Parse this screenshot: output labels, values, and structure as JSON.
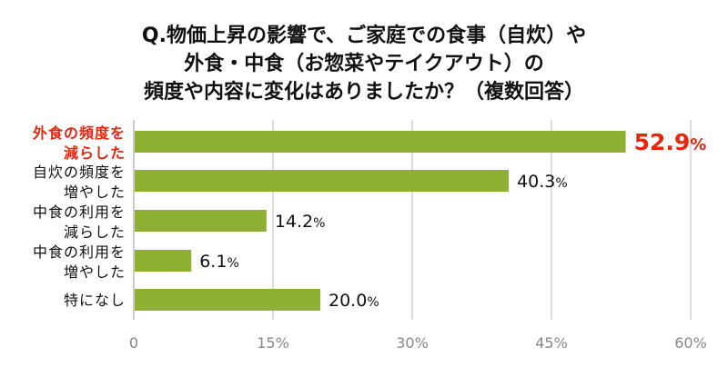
{
  "chart_data": {
    "type": "bar",
    "orientation": "horizontal",
    "title_lines": [
      "Q.物価上昇の影響で、ご家庭での食事（自炊）や",
      "外食・中食（お惣菜やテイクアウト）の",
      "頻度や内容に変化はありましたか？（複数回答）"
    ],
    "categories": [
      [
        "外食の頻度を",
        "減らした"
      ],
      [
        "自炊の頻度を",
        "増やした"
      ],
      [
        "中食の利用を",
        "減らした"
      ],
      [
        "中食の利用を",
        "増やした"
      ],
      [
        "特になし"
      ]
    ],
    "values": [
      52.9,
      40.3,
      14.2,
      6.1,
      20.0
    ],
    "value_labels": [
      "52.9",
      "40.3",
      "14.2",
      "6.1",
      "20.0"
    ],
    "unit": "%",
    "highlight_index": 0,
    "xlim": [
      0,
      60
    ],
    "xticks": [
      0,
      15,
      30,
      45,
      60
    ],
    "xtick_labels": [
      "0",
      "15%",
      "30%",
      "45%",
      "60%"
    ],
    "grid": true,
    "colors": {
      "bar": "#8db033",
      "highlight_text": "#e8260f",
      "text": "#111111",
      "tick": "#888888",
      "grid": "#bbbbbb"
    }
  }
}
